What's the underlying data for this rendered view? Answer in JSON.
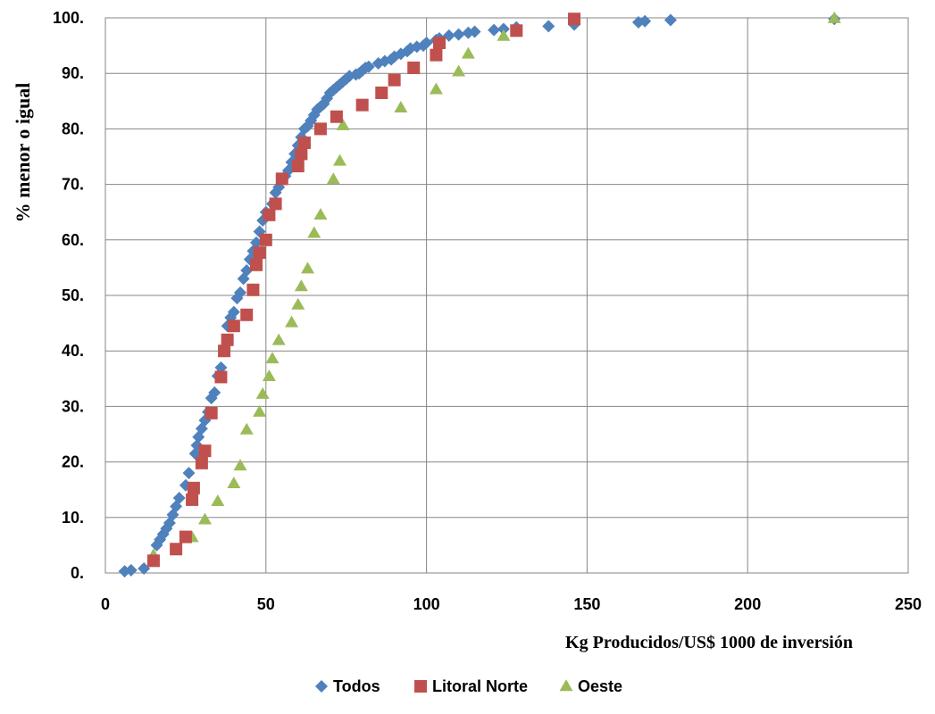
{
  "chart_data": {
    "type": "scatter",
    "title": "",
    "xlabel": "Kg Producidos/US$ 1000 de inversión",
    "ylabel": "% menor o igual",
    "xlim": [
      0,
      250
    ],
    "ylim": [
      0,
      100
    ],
    "x_ticks": [
      0,
      50,
      100,
      150,
      200,
      250
    ],
    "x_tick_labels": [
      "0",
      "50",
      "100",
      "150",
      "200",
      "250"
    ],
    "y_ticks": [
      0,
      10,
      20,
      30,
      40,
      50,
      60,
      70,
      80,
      90,
      100
    ],
    "y_tick_labels": [
      "0.",
      "10.",
      "20.",
      "30.",
      "40.",
      "50.",
      "60.",
      "70.",
      "80.",
      "90.",
      "100."
    ],
    "grid": {
      "x": true,
      "y": true
    },
    "legend_position": "bottom-center",
    "series": [
      {
        "name": "Todos",
        "marker": "diamond",
        "color": "#4F81BD",
        "points": [
          [
            6,
            0.3
          ],
          [
            8,
            0.5
          ],
          [
            12,
            0.8
          ],
          [
            16,
            5.0
          ],
          [
            17,
            6.0
          ],
          [
            18,
            7.0
          ],
          [
            19,
            8.0
          ],
          [
            20,
            9.0
          ],
          [
            21,
            10.5
          ],
          [
            22,
            12.0
          ],
          [
            23,
            13.5
          ],
          [
            25,
            15.8
          ],
          [
            26,
            18.0
          ],
          [
            28,
            21.5
          ],
          [
            28.5,
            23.0
          ],
          [
            29,
            24.5
          ],
          [
            30,
            26.0
          ],
          [
            31,
            27.5
          ],
          [
            32,
            29.0
          ],
          [
            33,
            31.5
          ],
          [
            34,
            32.5
          ],
          [
            35,
            35.5
          ],
          [
            36,
            37.0
          ],
          [
            37,
            40.0
          ],
          [
            38,
            44.5
          ],
          [
            39,
            46.0
          ],
          [
            40,
            47.0
          ],
          [
            41,
            49.5
          ],
          [
            42,
            50.5
          ],
          [
            43,
            53.0
          ],
          [
            44,
            54.5
          ],
          [
            45,
            56.5
          ],
          [
            46,
            58.0
          ],
          [
            47,
            59.5
          ],
          [
            48,
            61.5
          ],
          [
            49,
            63.5
          ],
          [
            50,
            65.0
          ],
          [
            52,
            66.5
          ],
          [
            53,
            68.5
          ],
          [
            54,
            69.5
          ],
          [
            56,
            71.5
          ],
          [
            57,
            72.5
          ],
          [
            58,
            74.0
          ],
          [
            59,
            75.5
          ],
          [
            60,
            77.0
          ],
          [
            61,
            78.5
          ],
          [
            62,
            80.0
          ],
          [
            63,
            80.5
          ],
          [
            64,
            81.5
          ],
          [
            65,
            82.5
          ],
          [
            66,
            83.5
          ],
          [
            67,
            84.0
          ],
          [
            68,
            84.5
          ],
          [
            69,
            85.5
          ],
          [
            70,
            86.5
          ],
          [
            71,
            87.0
          ],
          [
            72,
            87.5
          ],
          [
            73,
            88.0
          ],
          [
            74,
            88.5
          ],
          [
            75,
            89.0
          ],
          [
            76,
            89.5
          ],
          [
            78,
            89.8
          ],
          [
            79,
            90.0
          ],
          [
            80,
            90.5
          ],
          [
            81,
            91.0
          ],
          [
            82,
            91.2
          ],
          [
            85,
            91.8
          ],
          [
            87,
            92.2
          ],
          [
            89,
            92.5
          ],
          [
            90,
            93.0
          ],
          [
            92,
            93.5
          ],
          [
            94,
            94.0
          ],
          [
            95,
            94.5
          ],
          [
            97,
            94.8
          ],
          [
            99,
            95.0
          ],
          [
            100,
            95.5
          ],
          [
            103,
            96.0
          ],
          [
            104,
            96.3
          ],
          [
            107,
            96.8
          ],
          [
            110,
            97.0
          ],
          [
            113,
            97.3
          ],
          [
            115,
            97.5
          ],
          [
            121,
            97.8
          ],
          [
            124,
            98.0
          ],
          [
            128,
            98.3
          ],
          [
            138,
            98.5
          ],
          [
            146,
            98.8
          ],
          [
            166,
            99.2
          ],
          [
            168,
            99.4
          ],
          [
            176,
            99.6
          ],
          [
            227,
            99.8
          ]
        ]
      },
      {
        "name": "Litoral Norte",
        "marker": "square",
        "color": "#C0504D",
        "points": [
          [
            15,
            2.2
          ],
          [
            22,
            4.3
          ],
          [
            25,
            6.5
          ],
          [
            27,
            13.2
          ],
          [
            27.5,
            15.3
          ],
          [
            30,
            19.8
          ],
          [
            31,
            22.0
          ],
          [
            33,
            28.8
          ],
          [
            36,
            35.3
          ],
          [
            37,
            40.0
          ],
          [
            38,
            42.0
          ],
          [
            40,
            44.5
          ],
          [
            44,
            46.5
          ],
          [
            46,
            51.0
          ],
          [
            47,
            55.5
          ],
          [
            48,
            57.7
          ],
          [
            50,
            60.0
          ],
          [
            51,
            64.5
          ],
          [
            53,
            66.5
          ],
          [
            55,
            71.0
          ],
          [
            60,
            73.3
          ],
          [
            61,
            75.5
          ],
          [
            62,
            77.5
          ],
          [
            67,
            80.0
          ],
          [
            72,
            82.2
          ],
          [
            80,
            84.3
          ],
          [
            86,
            86.5
          ],
          [
            90,
            88.8
          ],
          [
            96,
            91.0
          ],
          [
            103,
            93.3
          ],
          [
            104,
            95.5
          ],
          [
            128,
            97.7
          ],
          [
            146,
            99.8
          ]
        ]
      },
      {
        "name": "Oeste",
        "marker": "triangle",
        "color": "#9BBB59",
        "points": [
          [
            15,
            3.2
          ],
          [
            27,
            6.4
          ],
          [
            31,
            9.6
          ],
          [
            35,
            12.9
          ],
          [
            40,
            16.1
          ],
          [
            42,
            19.3
          ],
          [
            44,
            25.8
          ],
          [
            48,
            29.0
          ],
          [
            49,
            32.2
          ],
          [
            51,
            35.4
          ],
          [
            52,
            38.6
          ],
          [
            54,
            41.9
          ],
          [
            58,
            45.1
          ],
          [
            60,
            48.3
          ],
          [
            61,
            51.6
          ],
          [
            63,
            54.8
          ],
          [
            65,
            61.2
          ],
          [
            67,
            64.5
          ],
          [
            71,
            70.9
          ],
          [
            73,
            74.2
          ],
          [
            74,
            80.6
          ],
          [
            92,
            83.8
          ],
          [
            103,
            87.1
          ],
          [
            110,
            90.3
          ],
          [
            113,
            93.5
          ],
          [
            124,
            96.7
          ],
          [
            227,
            99.9
          ]
        ]
      }
    ]
  }
}
